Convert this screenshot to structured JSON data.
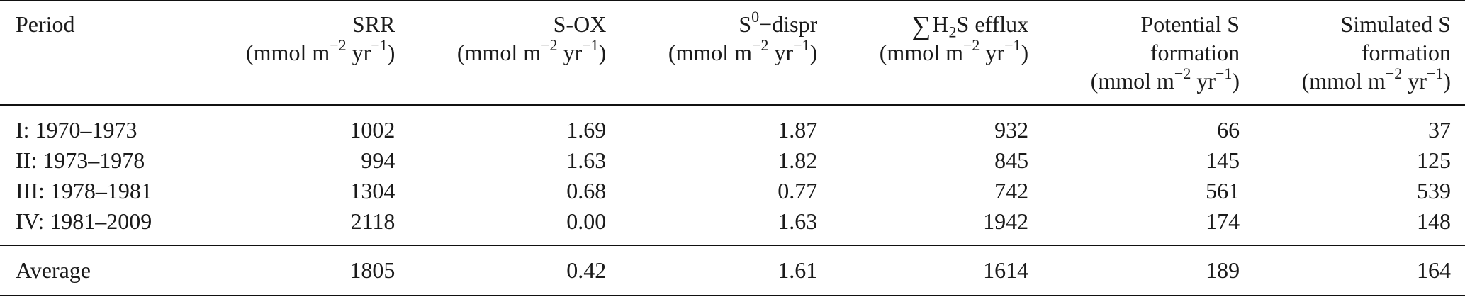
{
  "table": {
    "headers": {
      "period": "Period",
      "srr": {
        "name": "SRR",
        "unit_pre": "(mmol m",
        "unit_exp": "−2",
        "unit_mid": " yr",
        "unit_exp2": "−1",
        "unit_post": ")"
      },
      "sox": {
        "name": "S-OX",
        "unit_pre": "(mmol m",
        "unit_exp": "−2",
        "unit_mid": " yr",
        "unit_exp2": "−1",
        "unit_post": ")"
      },
      "s0": {
        "name_base": "S",
        "name_sup": "0",
        "name_rest": "−dispr",
        "unit_pre": "(mmol m",
        "unit_exp": "−2",
        "unit_mid": " yr",
        "unit_exp2": "−1",
        "unit_post": ")"
      },
      "h2s": {
        "sum_symbol": "∑",
        "name_pre": "H",
        "name_sub": "2",
        "name_post": "S efflux",
        "unit_pre": "(mmol m",
        "unit_exp": "−2",
        "unit_mid": " yr",
        "unit_exp2": "−1",
        "unit_post": ")"
      },
      "potential": {
        "line1": "Potential S",
        "line2": "formation",
        "unit_pre": "(mmol m",
        "unit_exp": "−2",
        "unit_mid": " yr",
        "unit_exp2": "−1",
        "unit_post": ")"
      },
      "simulated": {
        "line1": "Simulated S",
        "line2": "formation",
        "unit_pre": "(mmol m",
        "unit_exp": "−2",
        "unit_mid": " yr",
        "unit_exp2": "−1",
        "unit_post": ")"
      }
    },
    "rows": [
      {
        "period": "I: 1970–1973",
        "srr": "1002",
        "sox": "1.69",
        "s0": "1.87",
        "h2s": "932",
        "potential": "66",
        "simulated": "37"
      },
      {
        "period": "II: 1973–1978",
        "srr": "994",
        "sox": "1.63",
        "s0": "1.82",
        "h2s": "845",
        "potential": "145",
        "simulated": "125"
      },
      {
        "period": "III: 1978–1981",
        "srr": "1304",
        "sox": "0.68",
        "s0": "0.77",
        "h2s": "742",
        "potential": "561",
        "simulated": "539"
      },
      {
        "period": "IV: 1981–2009",
        "srr": "2118",
        "sox": "0.00",
        "s0": "1.63",
        "h2s": "1942",
        "potential": "174",
        "simulated": "148"
      }
    ],
    "footer": {
      "period": "Average",
      "srr": "1805",
      "sox": "0.42",
      "s0": "1.61",
      "h2s": "1614",
      "potential": "189",
      "simulated": "164"
    }
  }
}
